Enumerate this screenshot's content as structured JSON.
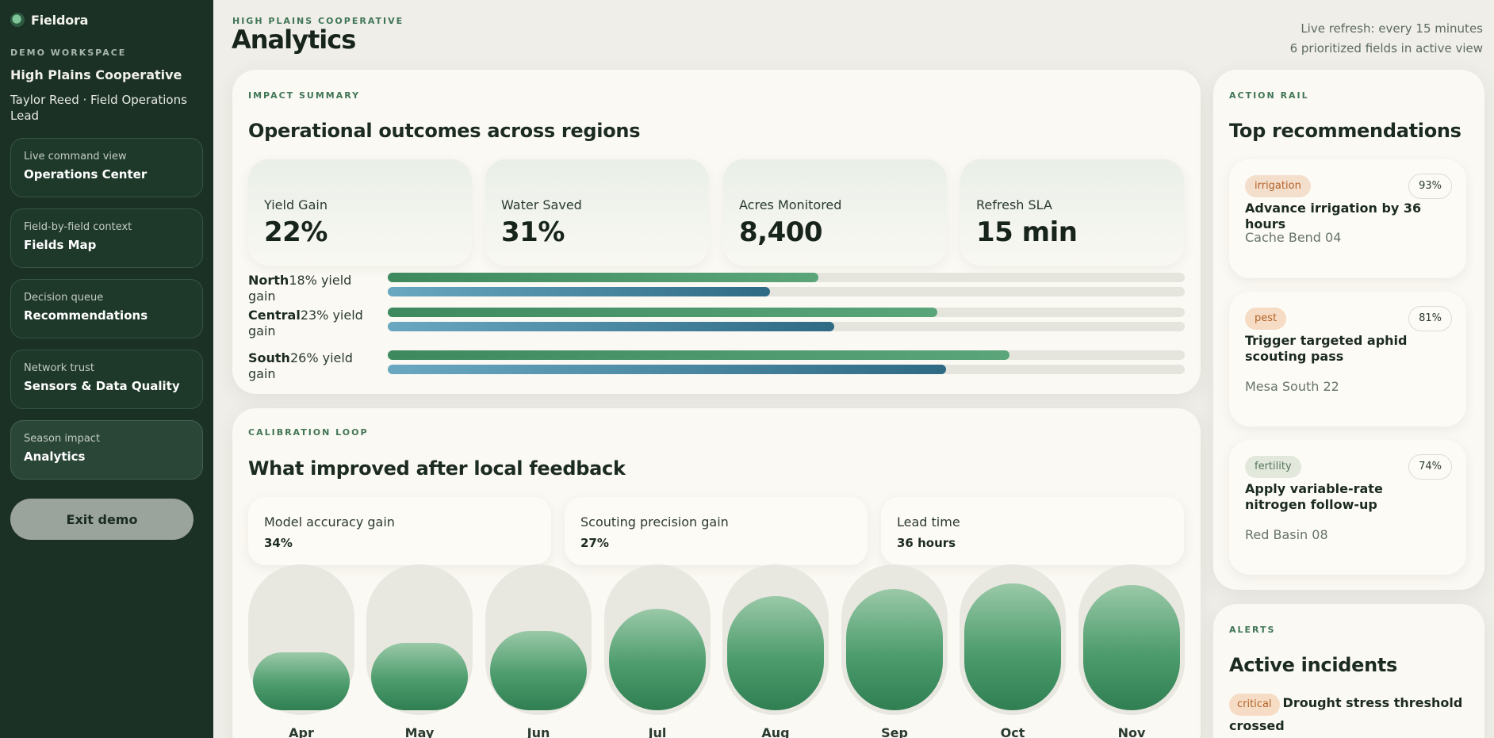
{
  "app": {
    "brand": "Fieldora",
    "workspace_label": "DEMO WORKSPACE",
    "workspace_name": "High Plains Cooperative",
    "user": "Taylor Reed · Field Operations Lead"
  },
  "nav": [
    {
      "sub": "Live command view",
      "title": "Operations Center"
    },
    {
      "sub": "Field-by-field context",
      "title": "Fields Map"
    },
    {
      "sub": "Decision queue",
      "title": "Recommendations"
    },
    {
      "sub": "Network trust",
      "title": "Sensors & Data Quality"
    },
    {
      "sub": "Season impact",
      "title": "Analytics"
    }
  ],
  "exit_label": "Exit demo",
  "header": {
    "eyebrow": "HIGH PLAINS COOPERATIVE",
    "title": "Analytics",
    "refresh": "Live refresh: every 15 minutes",
    "fields": "6 prioritized fields in active view"
  },
  "impact": {
    "eyebrow": "IMPACT SUMMARY",
    "title": "Operational outcomes across regions",
    "kpis": [
      {
        "label": "Yield Gain",
        "value": "22%"
      },
      {
        "label": "Water Saved",
        "value": "31%"
      },
      {
        "label": "Acres Monitored",
        "value": "8,400"
      },
      {
        "label": "Refresh SLA",
        "value": "15 min"
      }
    ],
    "regions": [
      {
        "name": "North",
        "text": "18% yield gain",
        "bar_a": 0.54,
        "bar_b": 0.48
      },
      {
        "name": "Central",
        "text": "23% yield gain",
        "bar_a": 0.69,
        "bar_b": 0.56
      },
      {
        "name": "South",
        "text": "26% yield gain",
        "bar_a": 0.78,
        "bar_b": 0.7
      }
    ]
  },
  "calibration": {
    "eyebrow": "CALIBRATION LOOP",
    "title": "What improved after local feedback",
    "metrics": [
      {
        "label": "Model accuracy gain",
        "value": "34%"
      },
      {
        "label": "Scouting precision gain",
        "value": "27%"
      },
      {
        "label": "Lead time",
        "value": "36 hours"
      }
    ],
    "months": [
      {
        "label": "Apr",
        "level": 0.41
      },
      {
        "label": "May",
        "level": 0.48
      },
      {
        "label": "Jun",
        "level": 0.56
      },
      {
        "label": "Jul",
        "level": 0.72
      },
      {
        "label": "Aug",
        "level": 0.81
      },
      {
        "label": "Sep",
        "level": 0.86
      },
      {
        "label": "Oct",
        "level": 0.9
      },
      {
        "label": "Nov",
        "level": 0.89
      }
    ]
  },
  "rail": {
    "eyebrow": "ACTION RAIL",
    "title": "Top recommendations",
    "items": [
      {
        "tag": "irrigation",
        "confidence": "93%",
        "title": "Advance irrigation by 36 hours",
        "field": "Cache Bend 04"
      },
      {
        "tag": "pest",
        "confidence": "81%",
        "title": "Trigger targeted aphid scouting pass",
        "field": "Mesa South 22"
      },
      {
        "tag": "fertility",
        "confidence": "74%",
        "title": "Apply variable-rate nitrogen follow-up",
        "field": "Red Basin 08"
      }
    ]
  },
  "alerts": {
    "eyebrow": "ALERTS",
    "title": "Active incidents",
    "items": [
      {
        "severity": "critical",
        "title": "Drought stress threshold crossed"
      }
    ]
  }
}
